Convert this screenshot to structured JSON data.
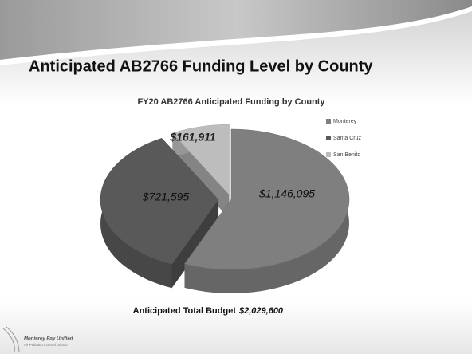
{
  "slide": {
    "title": "Anticipated AB2766 Funding Level by County",
    "footer_label": "Anticipated Total Budget",
    "footer_value": "$2,029,600",
    "logo_name": "Monterey Bay Unified",
    "logo_sub": "Air Pollution Control District"
  },
  "chart_data": {
    "type": "pie",
    "title": "FY20 AB2766 Anticipated Funding by County",
    "categories": [
      "Monterey",
      "Santa Cruz",
      "San Benito"
    ],
    "values": [
      1146095,
      721595,
      161911
    ],
    "value_labels": [
      "$1,146,095",
      "$721,595",
      "$161,911"
    ],
    "colors": [
      "#7f7f7f",
      "#595959",
      "#bdbdbd"
    ],
    "legend": "right"
  }
}
